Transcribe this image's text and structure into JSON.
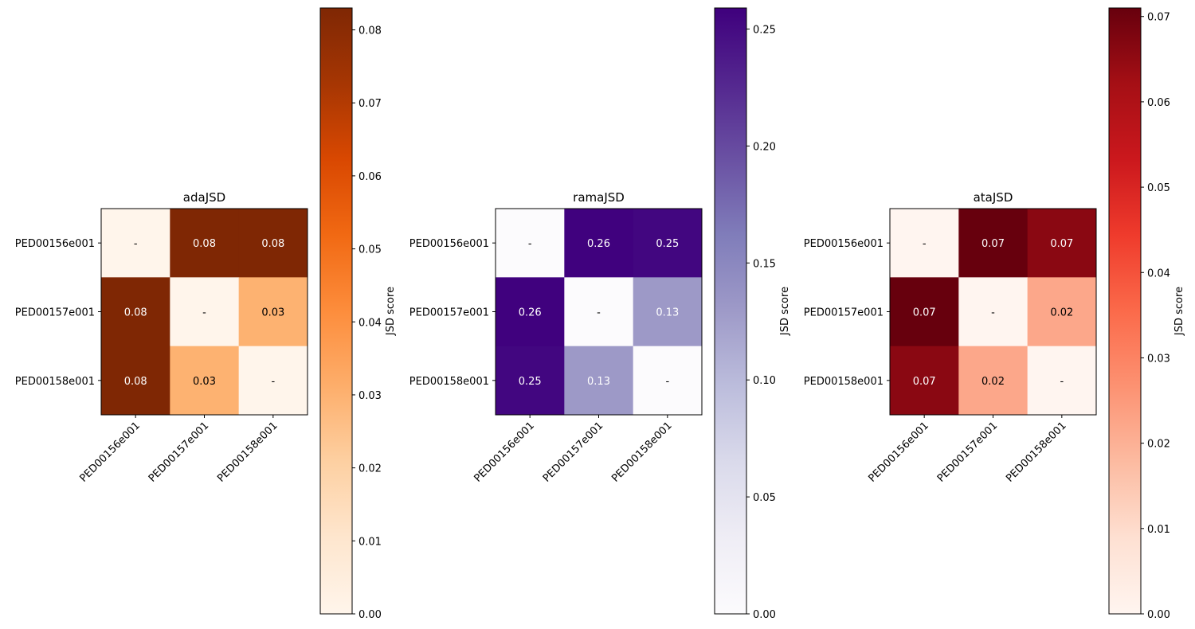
{
  "chart_data": [
    {
      "type": "heatmap",
      "title": "adaJSD",
      "colormap": "Oranges",
      "row_labels": [
        "PED00156e001",
        "PED00157e001",
        "PED00158e001"
      ],
      "col_labels": [
        "PED00156e001",
        "PED00157e001",
        "PED00158e001"
      ],
      "values": [
        [
          0,
          0.083,
          0.083
        ],
        [
          0.083,
          0,
          0.03
        ],
        [
          0.083,
          0.03,
          0
        ]
      ],
      "cell_text": [
        [
          "-",
          "0.08",
          "0.08"
        ],
        [
          "0.08",
          "-",
          "0.03"
        ],
        [
          "0.08",
          "0.03",
          "-"
        ]
      ],
      "colorbar": {
        "label": "JSD score",
        "vmin": 0,
        "vmax": 0.083,
        "ticks": [
          0,
          0.01,
          0.02,
          0.03,
          0.04,
          0.05,
          0.06,
          0.07,
          0.08
        ],
        "tick_labels": [
          "0.00",
          "0.01",
          "0.02",
          "0.03",
          "0.04",
          "0.05",
          "0.06",
          "0.07",
          "0.08"
        ]
      }
    },
    {
      "type": "heatmap",
      "title": "ramaJSD",
      "colormap": "Purples",
      "row_labels": [
        "PED00156e001",
        "PED00157e001",
        "PED00158e001"
      ],
      "col_labels": [
        "PED00156e001",
        "PED00157e001",
        "PED00158e001"
      ],
      "values": [
        [
          0,
          0.258,
          0.254
        ],
        [
          0.258,
          0,
          0.131
        ],
        [
          0.254,
          0.131,
          0
        ]
      ],
      "cell_text": [
        [
          "-",
          "0.26",
          "0.25"
        ],
        [
          "0.26",
          "-",
          "0.13"
        ],
        [
          "0.25",
          "0.13",
          "-"
        ]
      ],
      "colorbar": {
        "label": "JSD score",
        "vmin": 0,
        "vmax": 0.259,
        "ticks": [
          0,
          0.05,
          0.1,
          0.15,
          0.2,
          0.25
        ],
        "tick_labels": [
          "0.00",
          "0.05",
          "0.10",
          "0.15",
          "0.20",
          "0.25"
        ]
      }
    },
    {
      "type": "heatmap",
      "title": "ataJSD",
      "colormap": "Reds",
      "row_labels": [
        "PED00156e001",
        "PED00157e001",
        "PED00158e001"
      ],
      "col_labels": [
        "PED00156e001",
        "PED00157e001",
        "PED00158e001"
      ],
      "values": [
        [
          0,
          0.071,
          0.066
        ],
        [
          0.071,
          0,
          0.022
        ],
        [
          0.066,
          0.022,
          0
        ]
      ],
      "cell_text": [
        [
          "-",
          "0.07",
          "0.07"
        ],
        [
          "0.07",
          "-",
          "0.02"
        ],
        [
          "0.07",
          "0.02",
          "-"
        ]
      ],
      "colorbar": {
        "label": "JSD score",
        "vmin": 0,
        "vmax": 0.071,
        "ticks": [
          0,
          0.01,
          0.02,
          0.03,
          0.04,
          0.05,
          0.06,
          0.07
        ],
        "tick_labels": [
          "0.00",
          "0.01",
          "0.02",
          "0.03",
          "0.04",
          "0.05",
          "0.06",
          "0.07"
        ]
      }
    }
  ],
  "colormaps": {
    "Oranges": [
      "#fff5eb",
      "#fee6ce",
      "#fdd0a2",
      "#fdae6b",
      "#fd8d3c",
      "#f16913",
      "#d94801",
      "#a63603",
      "#7f2704"
    ],
    "Purples": [
      "#fcfbfd",
      "#efedf5",
      "#dadaeb",
      "#bcbddc",
      "#9e9ac8",
      "#807dba",
      "#6a51a3",
      "#54278f",
      "#3f007d"
    ],
    "Reds": [
      "#fff5f0",
      "#fee0d2",
      "#fcbba1",
      "#fc9272",
      "#fb6a4a",
      "#ef3b2c",
      "#cb181d",
      "#a50f15",
      "#67000d"
    ]
  }
}
